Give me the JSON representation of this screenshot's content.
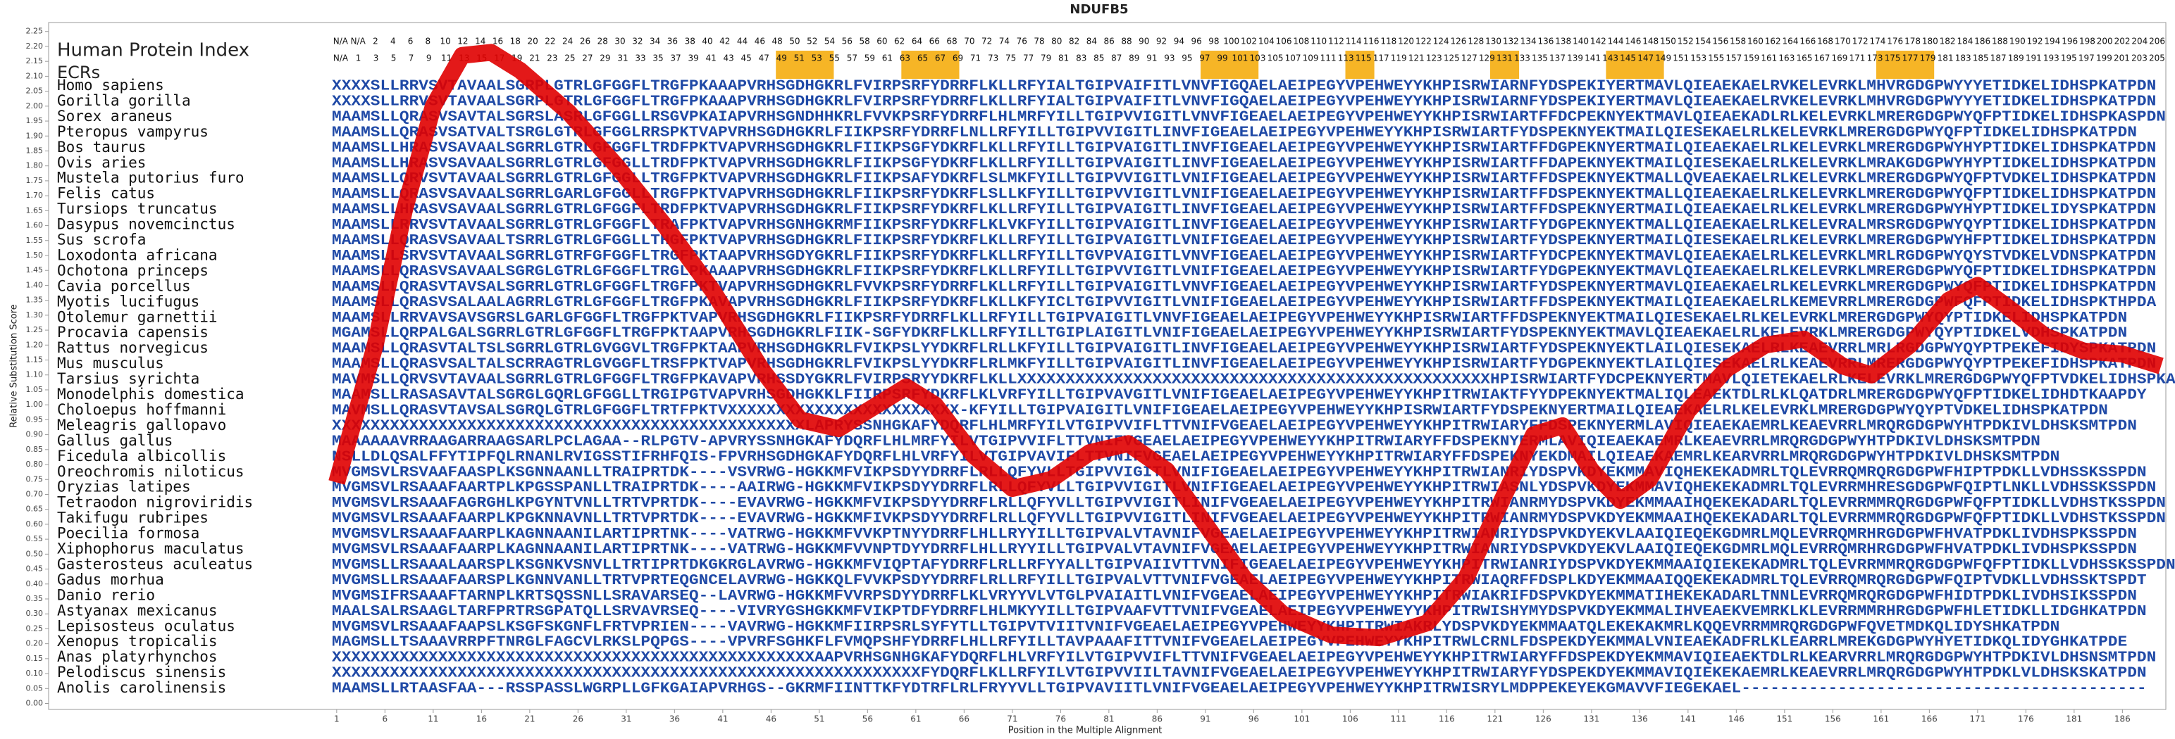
{
  "chart_data": {
    "type": "line",
    "title": "NDUFB5",
    "xlabel": "Position in the Multiple Alignment",
    "ylabel": "Relative Substitution Score",
    "xlim": [
      0.5,
      190.5
    ],
    "ylim": [
      -0.02,
      2.28
    ],
    "xticks": [
      1,
      6,
      11,
      16,
      21,
      26,
      31,
      36,
      41,
      46,
      51,
      56,
      61,
      66,
      71,
      76,
      81,
      86,
      91,
      96,
      101,
      106,
      111,
      116,
      121,
      126,
      131,
      136,
      141,
      146,
      151,
      156,
      161,
      166,
      171,
      176,
      181,
      186
    ],
    "yticks": [
      {
        "value": 0,
        "label": "0.00"
      },
      {
        "value": 0.05,
        "label": "0.05"
      },
      {
        "value": 0.1,
        "label": "0.10"
      },
      {
        "value": 0.15,
        "label": "0.15"
      },
      {
        "value": 0.2,
        "label": "0.20"
      },
      {
        "value": 0.25,
        "label": "0.25"
      },
      {
        "value": 0.3,
        "label": "0.30"
      },
      {
        "value": 0.35,
        "label": "0.35"
      },
      {
        "value": 0.4,
        "label": "0.40"
      },
      {
        "value": 0.45,
        "label": "0.45"
      },
      {
        "value": 0.5,
        "label": "0.50"
      },
      {
        "value": 0.55,
        "label": "0.55"
      },
      {
        "value": 0.6,
        "label": "0.60"
      },
      {
        "value": 0.65,
        "label": "0.65"
      },
      {
        "value": 0.7,
        "label": "0.70"
      },
      {
        "value": 0.75,
        "label": "0.75"
      },
      {
        "value": 0.8,
        "label": "0.80"
      },
      {
        "value": 0.85,
        "label": "0.85"
      },
      {
        "value": 0.9,
        "label": "0.90"
      },
      {
        "value": 0.95,
        "label": "0.95"
      },
      {
        "value": 1,
        "label": "1.00"
      },
      {
        "value": 1.05,
        "label": "1.05"
      },
      {
        "value": 1.1,
        "label": "1.10"
      },
      {
        "value": 1.15,
        "label": "1.15"
      },
      {
        "value": 1.2,
        "label": "1.20"
      },
      {
        "value": 1.25,
        "label": "1.25"
      },
      {
        "value": 1.3,
        "label": "1.30"
      },
      {
        "value": 1.35,
        "label": "1.35"
      },
      {
        "value": 1.4,
        "label": "1.40"
      },
      {
        "value": 1.45,
        "label": "1.45"
      },
      {
        "value": 1.5,
        "label": "1.50"
      },
      {
        "value": 1.55,
        "label": "1.55"
      },
      {
        "value": 1.6,
        "label": "1.60"
      },
      {
        "value": 1.65,
        "label": "1.65"
      },
      {
        "value": 1.7,
        "label": "1.70"
      },
      {
        "value": 1.75,
        "label": "1.75"
      },
      {
        "value": 1.8,
        "label": "1.80"
      },
      {
        "value": 1.85,
        "label": "1.85"
      },
      {
        "value": 1.9,
        "label": "1.90"
      },
      {
        "value": 1.95,
        "label": "1.95"
      },
      {
        "value": 2,
        "label": "2.00"
      },
      {
        "value": 2.05,
        "label": "2.05"
      },
      {
        "value": 2.1,
        "label": "2.10"
      },
      {
        "value": 2.15,
        "label": "2.15"
      },
      {
        "value": 2.2,
        "label": "2.20"
      },
      {
        "value": 2.25,
        "label": "2.25"
      }
    ],
    "color": "#e00000",
    "x": [
      1,
      5,
      8,
      11,
      14,
      17,
      20,
      25,
      30,
      35,
      40,
      45,
      49,
      53,
      57,
      60,
      63,
      67,
      71,
      75,
      79,
      83,
      87,
      91,
      95,
      99,
      104,
      109,
      114,
      118,
      122,
      125,
      128,
      131,
      134,
      137,
      141,
      145,
      149,
      153,
      157,
      160,
      164,
      168,
      171,
      174,
      178,
      182,
      186,
      190
    ],
    "values": [
      0.74,
      1.2,
      1.65,
      2.0,
      2.17,
      2.18,
      2.12,
      1.98,
      1.8,
      1.6,
      1.38,
      1.12,
      0.95,
      0.92,
      1.0,
      1.06,
      1.0,
      0.83,
      0.72,
      0.75,
      0.84,
      0.87,
      0.78,
      0.6,
      0.42,
      0.3,
      0.23,
      0.22,
      0.27,
      0.42,
      0.7,
      0.9,
      0.93,
      0.78,
      0.68,
      0.75,
      0.98,
      1.12,
      1.2,
      1.22,
      1.13,
      1.1,
      1.2,
      1.35,
      1.4,
      1.33,
      1.23,
      1.18,
      1.17,
      1.13
    ],
    "ecr_color": "#f5a800",
    "ecr_regions": [
      [
        47,
        52
      ],
      [
        60,
        65
      ],
      [
        91,
        96
      ],
      [
        106,
        108
      ],
      [
        121,
        123
      ],
      [
        133,
        138
      ],
      [
        161,
        166
      ]
    ],
    "index_rows": [
      {
        "label": "Human Protein Index",
        "labels": [
          "N/A",
          "N/A",
          2,
          4,
          6,
          8,
          10,
          12,
          14,
          16,
          18,
          20,
          22,
          24,
          26,
          28,
          30,
          32,
          34,
          36,
          38,
          40,
          42,
          44,
          46,
          48,
          50,
          52,
          54,
          56,
          58,
          60,
          62,
          64,
          66,
          68,
          70,
          72,
          74,
          76,
          78,
          80,
          82,
          84,
          86,
          88,
          90,
          92,
          94,
          96,
          98,
          100,
          102,
          104,
          106,
          108,
          110,
          112,
          114,
          116,
          118,
          120,
          122,
          124,
          126,
          128,
          130,
          132,
          134,
          136,
          138,
          140,
          142,
          144,
          146,
          148,
          150,
          152,
          154,
          156,
          158,
          160,
          162,
          164,
          166,
          168,
          170,
          172,
          174,
          176,
          178,
          180,
          182,
          184,
          186,
          188,
          190,
          192,
          194,
          196,
          198,
          200,
          202,
          204,
          206
        ]
      },
      {
        "label": "ECRs",
        "labels": [
          "N/A",
          1,
          3,
          5,
          7,
          9,
          11,
          13,
          15,
          17,
          19,
          21,
          23,
          25,
          27,
          29,
          31,
          33,
          35,
          37,
          39,
          41,
          43,
          45,
          47,
          49,
          51,
          53,
          55,
          57,
          59,
          61,
          63,
          65,
          67,
          69,
          71,
          73,
          75,
          77,
          79,
          81,
          83,
          85,
          87,
          89,
          91,
          93,
          95,
          97,
          99,
          101,
          103,
          105,
          107,
          109,
          111,
          113,
          115,
          117,
          119,
          121,
          123,
          125,
          127,
          129,
          131,
          133,
          135,
          137,
          139,
          141,
          143,
          145,
          147,
          149,
          151,
          153,
          155,
          157,
          159,
          161,
          163,
          165,
          167,
          169,
          171,
          173,
          175,
          177,
          179,
          181,
          183,
          185,
          187,
          189,
          191,
          193,
          195,
          197,
          199,
          201,
          203,
          205
        ]
      }
    ],
    "rows": [
      {
        "species": "Homo sapiens",
        "sequence": "XXXXSLLRRVSVTAVAALSGRPLGTRLGFGGFLTRGFPKAAAPVRHSGDHGKRLFVIRPSRFYDRRFLKLLRFYIALTGIPVAIFITLVNVFIGQAELAEIPEGYVPEHWEYYKHPISRWIARNFYDSPEKIYERTMAVLQIEAEKAELRVKELEVRKLMHVRGDGPWYYYETIDKELIDHSPKATPDN"
      },
      {
        "species": "Gorilla gorilla",
        "sequence": "XXXXSLLRRVSVTAVAALSGRPLGTRLGFGGFLTRGFPKAAAPVRHSGDHGKRLFVIRPSRFYDRRFLKLLRFYIALTGIPVAIFITLVNVFIGQAELAEIPEGYVPEHWEYYKHPISRWIARNFYDSPEKIYERTMAVLQIEAEKAELRVKELEVRKLMHVRGDGPWYYYETIDKELIDHSPKATPDN"
      },
      {
        "species": "Sorex araneus",
        "sequence": "MAAMSLLQRASVSAVTALSGRSLASRLGFGGLLRSGVPKAIAPVRHSGNDHHKRLFVVKPSRFYDRRFLHLMRFYILLTGIPVVIGITLVNVFIGEAELAEIPEGYVPEHWEYYKHPISRWIARTFFDCPEKNYEKTMAVLQIEAEKADLRLKELEVRKLMRERGDGPWYQFPTIDKELIDHSPKASPDN"
      },
      {
        "species": "Pteropus vampyrus",
        "sequence": "MAAMSLLQRASVSATVALTSRGLGTRLGFGGLRRSPKTVAPVRHSGDHGKRLFIIKPSRFYDRRFLNLLRFYILLTGIPVVIGITLINVFIGEAELAEIPEGYVPEHWEYYKHPISRWIARTFYDSPEKNYEKTMAILQIESEKAELRLKELEVRKLMRERGDGPWYQFPTIDKELIDHSPKATPDN"
      },
      {
        "species": "Bos taurus",
        "sequence": "MAAMSLLHRASVSAVAALSGRRLGTRLGFGGFLTRDFPKTVAPVRHSGDHGKRLFIIKPSGFYDKRFLKLLRFYILLTGIPVAIGITLINVFIGEAELAEIPEGYVPEHWEYYKHPISRWIARTFFDGPEKNYERTMAILQIEAEKAELRLKELEVRKLMRERGDGPWYHYPTIDKELIDHSPKATPDN"
      },
      {
        "species": "Ovis aries",
        "sequence": "MAAMSLLHRASVSAVAALSGRRLGTRLGFGGLLTRDFPKTVAPVRHSGDHGKRLFIIKPSGFYDKRFLKLLRFYILLTGIPVAIGITLINVFIGEAELAEIPEGYVPEHWEYYKHPISRWIARTFFDAPEKNYEKTMAILQIESEKAELRLKELEVRKLMRAKGDGPWYHYPTIDKELIDHSPKATPDN"
      },
      {
        "species": "Mustela putorius furo",
        "sequence": "MAAMSLLQRVSVTAVAALSGRRLGTRLGFGGLLTRGFPKTVAPVRHSGDHGKRLFIIKPSAFYDKRFLSLMKFYILLTGIPVVIGITLVNIFIGEAELAEIPEGYVPEHWEYYKHPISRWIARTFFDSPEKNYEKTMALLQVEAEKAELRLKELEVRKLMRERGDGPWYQFPTVDKELIDHSPKATPDN"
      },
      {
        "species": "Felis catus",
        "sequence": "MAAMSLLQRASVSAVAALSGRRLGARLGFGGLLTRGFPKTVAPVRHSGDHGKRLFIIKPSRFYDKRFLSLLKFYILLTGIPVVIGITLVNIFIGEAELAEIPEGYVPEHWEYYKHPISRWIARTFFDSPEKNYEKTMALLQIEAEKAELRLKELEVRKLMRERGDGPWYQFPTIDKELIDHSPKATPDN"
      },
      {
        "species": "Tursiops truncatus",
        "sequence": "MAAMSLLHRASVSAVAALSGRRLGTRLGFGGFLTRDFPKTVAPVRHSGDHGKRLFIIKPSRFYDKRFLKLLRFYILLTGIPVAIGITLINVFIGEAELAEIPEGYVPEHWEYYKHPISRWIARTFFDSPEKNYERTMAILQIEAEKAELRLKELEVRKLMRERGDGPWYHYPTIDKELIDYSPKATPDN"
      },
      {
        "species": "Dasypus novemcinctus",
        "sequence": "MAAMSLLRRVSVTAVAALSGRRLGTRLGFGGFLTRAFPKTVAPVRHSGNHGKRMFIIKPSRFYDKRFLKLVKFYILLTGIPVAIGITLINVFIGEAELAEIPEGYVPEHWEYYKHPISRWIARTFYDGPEKNYEKTMALLQIEAEKAELRLKELEVRALMRSRGDGPWYQYPTIDKELIDHSPKATPDN"
      },
      {
        "species": "Sus scrofa",
        "sequence": "MAAMSLLQRASVSAVAALTSRRLGTRLGFGGLLTHGFPKTVAPVRHSGDHGKRLFIIKPSRFYDKRFLKLLRFYILLTGIPVAIGITLVNIFIGEAELAEIPEGYVPEHWEYYKHPISRWIARTFYDSPEKNYERTMAILQIESEKAELRLKELEVRKLMRERGDGPWYHFPTIDKELIDHSPKATPDN"
      },
      {
        "species": "Loxodonta africana",
        "sequence": "MAAMSLLSRVSVTAVAALSGRRLGTRFGFGGFLTRGFPKTAAPVRHSGDYGKRLFIIKPSRFYDKRFLKLLRFYILLTGVPVAIGITLVNVFIGEAELAEIPEGYVPEHWEYYKHPISRWIARTFYDCPEKNYEKTMAVLQIEAEKAELRLKELEVRKLMRLRGDGPWYQYSTVDKELVDNSPKATPDN"
      },
      {
        "species": "Ochotona princeps",
        "sequence": "MAAMSLLQRASVSAVAALSGRGLGTRLGFGGFLTRGLPKAAAPVRHSGDHGKRLFIIKPSRFYDKRFLKLLRFYILLTGIPVVIGITLVNIFIGEAELAEIPEGYVPEHWEYYKHPISRWIARTFYDGPEKNYEKTMAVLQIEAEKAELRLKELEVRKLMRERGDGPWYQFPTIDKELIDHSPKATPDN"
      },
      {
        "species": "Cavia porcellus",
        "sequence": "MAAMSLLQRASVTAVSALSGRRLGTRLGFGGFLTRGFPKTVAPVRHSGDHGKRLFVVKPSRFYDRRFLKLLRFYILLTGIPVAIGITLVNVFIGEAELAEIPEGYVPEHWEYYKHPISRWIARTFYDSPEKNYERTMAVLQIEAEKAELRLKELEVRKLMRERGDGPWYQFPTIDKELIDHSPKATPDN"
      },
      {
        "species": "Myotis lucifugus",
        "sequence": "MAAMSLLQRASVSALAALAGRRLGTRLGFGGFLTRGFPKAVAPVRHSGDHGKRLFIIKPSRFYDKRFLKLLKFYICLTGIPVVIGITLVNIFIGEAELAEIPEGYVPEHWEYYKHPISRWIARTFFDSPEKNYEKTMAILQIEAEKAELRLKEMEVRRLMRERGDGPWFQFPTIDKELIDHSPKTHPDA"
      },
      {
        "species": "Otolemur garnettii",
        "sequence": "MAAMSLLRRVAVSAVSGRSLGARLGFGGFLTRGFPKTVAPVRHSGDHGKRLFIIKPSRFYDRRFLKLLRFYILLTGIPVAIGITLVNVFIGEAELAEIPEGYVPEHWEYYKHPISRWIARTFFDSPEKNYEKTMAILQIESEKAELRLKELEVRKLMRERGDGPWYQYPTIDKELIDHSPKATPDN"
      },
      {
        "species": "Procavia capensis",
        "sequence": "MGAMSLLQRPALGALSGRRLGTRLGFGGFLTRGFPKTAAPVRHSGDHGKRLFIIK-SGFYDKRFLKLLRFYILLTGIPLAIGITLVNIFIGEAELAEIPEGYVPEHWEYYKHPISRWIARTFYDSPEKNYEKTMAVLQIEAEKAELRLKELEVRKLMRERGDGPWYQYPTIDKELVDHSPKATPDN"
      },
      {
        "species": "Rattus norvegicus",
        "sequence": "MAAMSLLQRASVTALTSLSGRRLGTRLGVGGVLTRGFPKTAAPVRHSGDHGKRLFVIKPSLYYDKRFLRLLKFYILLTGIPVAIGITLINVFIGEAELAEIPEGYVPEHWEYYKHPISRWIARTFYDSPEKNYEKTLAILQIESEKAELRLKEAEVRRLMRLRGDGPWYQYPTPEKEFIDYSPKATPDN"
      },
      {
        "species": "Mus musculus",
        "sequence": "MAAMSLLQRASVSALTALSCRRAGTRLGVGGFLTRSFPKTVAPVRHSGDHGKRLFVIKPSLYYDKRFLRLMKFYILLTGIPVAIGITLINVFIGEAELAEIPEGYVPEHWEYYKHPISRWIARTFYDGPEKNYEKTLAILQIESEKAELRLKEAEVRRLMRERGDGPWYQYPTPEKEFIDHSPKATPDN"
      },
      {
        "species": "Tarsius syrichta",
        "sequence": "MAVMSLLQRVSVTAVAALSGRRLGTRLGFGGFLTRGFPKAVAPVRHSSDYGKRLFVIRPSRYYDKRFLKLLXXXXXXXXXXXXXXXXXXXXXXXXXXXXXXXXXXXXXXXXXXXXXXXXXHPISRWIARTFYDCPEKNYERTMAVLQIETEKAELRLKELEVRKLMRERGDGPWYQFPTVDKELIDHSPKASPDN"
      },
      {
        "species": "Monodelphis domestica",
        "sequence": "MAAMSLLRASASAVTALSGRGLGQRLGFGGLLTRGIPGTVAPVRHSGDHGKKLFIIRPSRFYDKRFLKLVRFYILLTGIPVAVGITLVNIFIGEAELAEIPEGYVPEHWEYYKHPITRWIAKTFYYDPEKNYEKTMALIQLEAEKTDLRLKLQATDRLMRERGDGPWYQFPTIDKELIDHDTKAAPDY"
      },
      {
        "species": "Choloepus hoffmanni",
        "sequence": "MAVMSLLQRASVTAVSALSGRQLGTRLGFGGFLTRTFPKTVXXXXXXXXXXXXXXXXXXXXXXXX-KFYILLTGIPVAIGITLVNIFIGEAELAEIPEGYVPEHWEYYKHPISRWIARTFYDSPEKNYERTMAILQIEAEKAELRLKELEVRKLMRERGDGPWYQYPTVDKELIDHSPKATPDN"
      },
      {
        "species": "Meleagris gallopavo",
        "sequence": "XXXXXXXXXXXXXXXXXXXXXXXXXXXXXXXXXXXXXXXXXXXXXXXXXLAPRYSSNHGKAFYDQRFLHLMRFYILVTGIPVVIFLTTVNIFVGEAELAEIPEGYVPEHWEYYKHPITRWIARYFFDSPEKNYERMLAVIQIEAEKAEMRLKEAEVRRLMRQRGDGPWYHTPDKIVLDHSKSMTPDN"
      },
      {
        "species": "Gallus gallus",
        "sequence": "MAAAAAAVRRAAGARRAAGSARLPCLAGAA--RLPGTV-APVRYSSNHGKAFYDQRFLHLMRFYILVTGIPVVIFLTTVNIFVGEAELAEIPEGYVPEHWEYYKHPITRWIARYFFDSPEKNYERMLAVIQIEAEKAEMRLKEAEVRRLMRQRGDGPWYHTPDKIVLDHSKSMTPDN"
      },
      {
        "species": "Ficedula albicollis",
        "sequence": "NSLLDLQSALFFYTIPFQLRNANLRVIGSSTIFRHFQIS-FPVRHSGDHGKAFYDQRFLHLVRFYILVTGIPVAVIFLTTVNIFVGEAELAEIPEGYVPEHWEYYKHPITRWIARYFFDSPEKNYEKDMAILQIEAEKAEMRLKEARVRRLMRQRGDGPWYHTPDKIVLDHSKSMTPDN"
      },
      {
        "species": "Oreochromis niloticus",
        "sequence": "MVGMSVLRSVAAFAASPLKSGNNAANLLTRAIPRTDK----VSVRWG-HGKKMFVIKPSDYYDRRFLRLLQFYVLLTGIPVVIGITLVNIFIGEAELAEIPEGYVPEHWEYYKHPITRWIANRIYDSPVKDYEKMMAVIQHEKEKADMRLTQLEVRRQMRQRGDGPWFHIPTPDKLLVDHSSKSSPDN"
      },
      {
        "species": "Oryzias latipes",
        "sequence": "MVGMSVLRSAAAFAARTPLKPGSSPANLLTRAIPRTDK----AAIRWG-HGKKMFVIKPSDYYDRRFLRLLQFYVLLTGIPVVIGITLVNIFIGEAELAEIPEGYVPEHWEYYKHPITRWIASNLYDSPVKDYEKMMAVIQHEKEKADMRLTQLEVRRMHRESGDGPWFQIPTLNKLLVDHSSKSSPDN"
      },
      {
        "species": "Tetraodon nigroviridis",
        "sequence": "MVGMSVLRSAAAFAGRGHLKPGYNTVNLLTRTVPRTDK----EVAVRWG-HGKKMFVIKPSDYYDRRFLRLLQFYVLLTGIPVVIGITLINIFVGEAELAEIPEGYVPEHWEYYKHPITRWIANRMYDSPVKDYEKMMAAIHQEKEKADARLTQLEVRRMMRQRGDGPWFQFPTIDKLLVDHSTKSSPDN"
      },
      {
        "species": "Takifugu rubripes",
        "sequence": "MVGMSVLRSAAAFAARPLKPGKNNAVNLLTRTVPRTDK----EVAVRWG-HGKKMFIVKPSDYYDRRFLRLLQFYVLLTGIPVVIGITLINIFVGEAELAEIPEGYVPEHWEYYKHPITRWIANRMYDSPVKDYEKMMAAIHQEKEKADARLTQLEVRRMMRQRGDGPWFQFPTIDKLLVDHSTKSSPDN"
      },
      {
        "species": "Poecilia formosa",
        "sequence": "MVGMSVLRSAAAFAARPLKAGNNAANILARTIPRTNK----VATRWG-HGKKMFVVKPTNYYDRRFLHLLRYYILLTGIPVALVTAVNIFVGEAELAEIPEGYVPEHWEYYKHPITRWIANRIYDSPVKDYEKVLAAIQIEQEKGDMRLMQLEVRRQMRHRGDGPWFHVATPDKLIVDHSPKSSPDN"
      },
      {
        "species": "Xiphophorus maculatus",
        "sequence": "MVGMSVLRSAAAFAARPLKAGNNAANILARTIPRTNK----VATRWG-HGKKMFVVNPTDYYDRRFLHLLRYYILLTGIPVALVTAVNIFVGEAELAEIPEGYVPEHWEYYKHPITRWIANRIYDSPVKDYEKVLAAIQIEQEKGDMRLMQLEVRRQMRHRGDGPWFHVATPDKLIVDHSPKSSPDN"
      },
      {
        "species": "Gasterosteus aculeatus",
        "sequence": "MVGMSLLRSAAALAARSPLKSGNKVSNVLLTRTIPRTDKGKRGLAVRWG-HGKKMFVIQPTAFYDRRFLRLLRFYYALLTGIPVAIIVTTVNIFIGEAELAEIPEGYVPEHWEYYKHPITRWIANRIYDSPVKDYEKMMAAIQIEKEKADMRLTQLEVRRMMRQRGDGPWFQFPTIDKLLVDHSSKSSPDN"
      },
      {
        "species": "Gadus morhua",
        "sequence": "MVGMSLLRSAAAFAARSPLKGNNVANLLTRTVPRTEQGNCELAVRWG-HGKKQLFVVKPSDYYDRRFLRLLRFYILLTGIPVALVTTVNIFVGEAELAEIPEGYVPEHWEYYKHPITRWIAQRFFDSPLKDYEKMMAAIQQEKEKADMRLTQLEVRRQMRQRGDGPWFQIPTVDKLLVDHSSKTSPDT"
      },
      {
        "species": "Danio rerio",
        "sequence": "MVGMSIFRSAAAFTARNPLKRTSQSSNLLSRAVARSEQ--LAVRWG-HGKKMFVVRPSDYYDRRFLKLVRYYVLVTGLPVAIAITLVNIFVGEAELAEIPEGYVPEHWEYYKHPITRWIAKRIFDSPVKDYEKMMATIHEKEKADARLTNNLEVRRQMRQRGDGPWFHIDTPDKLIVDHSIKSSPDN"
      },
      {
        "species": "Astyanax mexicanus",
        "sequence": "MAALSALRSAAGLTARFPRTRSGPATQLLSRVAVRSEQ----VIVRYGSHGKKMFVIKPTDFYDRRFLHLMKYYILLTGIPVAAFVTTVNIFVGEAELAEIPEGYVPEHWEYYKHPITRWISHYMYDSPVKDYEKMMALIHVEAEKVEMRKLKLEVRRMMRHRGDGPWFHLETIDKLLIDGHKATPDN"
      },
      {
        "species": "Lepisosteus oculatus",
        "sequence": "MVGMSVLRSAAAFAAPSLKSGFSKGNFLFRTVPRIEN----VAVRWG-HGKKMFIIRPSRLSYFYTLLTGIPVTVIITVNIFVGEAELAEIPEGYVPEHWEYYKHPITRWIAKRLYDSPVKDYEKMMAATQLEKEKAKMRLKQQEVRRMMRQRGDGPWFQVETMDKQLIDYSHKATPDN"
      },
      {
        "species": "Xenopus tropicalis",
        "sequence": "MAGMSLLTSAAAVRRPFTNRGLFAGCVLRKSLPQPGS----VPVRFSGHKFLFVMQPSHFYDRRFLHLLRFYILLTAVPAAAFITTVNIFVGEAELAEIPEGYVPEHWEYYKHPITRWLCRNLFDSPEKDYEKMMALVNIEAEKADFRLKLEARRLMREKGDGPWYHYETIDKQLIDYGHKATPDE"
      },
      {
        "species": "Anas platyrhynchos",
        "sequence": "XXXXXXXXXXXXXXXXXXXXXXXXXXXXXXXXXXXXXXXXXXXXXXXXXXAAPVRHSGNHGKAFYDQRFLHLVRFYILVTGIPVVIFLTTVNIFVGEAELAEIPEGYVPEHWEYYKHPITRWIARYFFDSPEKDYEKMMAVIQIEAEKTDLRLKEARVRRLMRQRGDGPWYHTPDKIVLDHSNSMTPDN"
      },
      {
        "species": "Pelodiscus sinensis",
        "sequence": "XXXXXXXXXXXXXXXXXXXXXXXXXXXXXXXXXXXXXXXXXXXXXXXXXXXXXXXXXXXXXFYDQRFLKLLRFYILVTGIPVVIILTAVNIFVGEAELAEIPEGYVPEHWEYYKHPITRWIARYFYDSPEKDYEKMMAVIQIEKEKAEMRLKEAEVRRLMRQRGDGPWYHTPDKLVLDHSKSKATPDN"
      },
      {
        "species": "Anolis carolinensis",
        "sequence": "MAAMSLLRTAASFAA---RSSPASSLWGRPLLGFKGAIAPVRHGS--GKRMFIINTTKFYDTRFLRLFRYYVLLTGIPVAVIITLVNIFVGEAELAEIPEGYVPEHWEYYKHPITRWISRYLMDPPEKEYEKGMAVVFIEGEKAEL------------------------------------------"
      }
    ]
  }
}
